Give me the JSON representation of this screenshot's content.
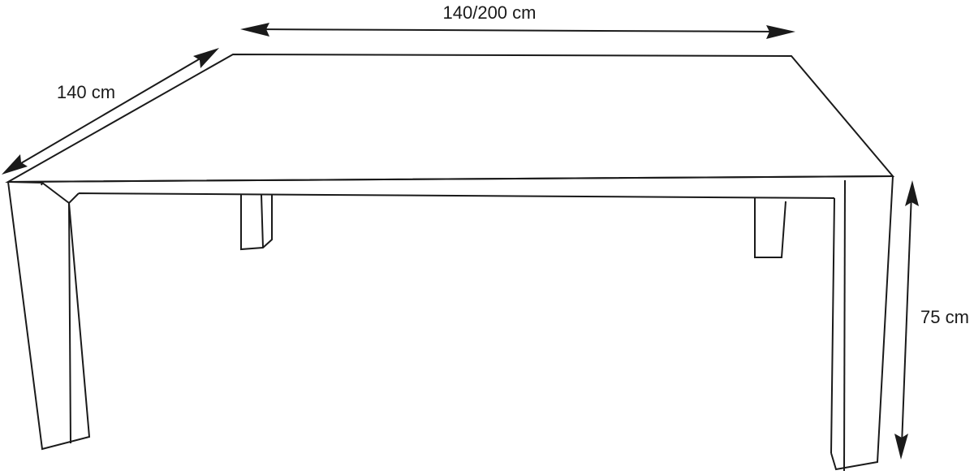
{
  "dimensions": {
    "width_label": "140/200 cm",
    "depth_label": "140 cm",
    "height_label": "75 cm"
  },
  "colors": {
    "line": "#1a1a1a",
    "background": "#ffffff"
  }
}
